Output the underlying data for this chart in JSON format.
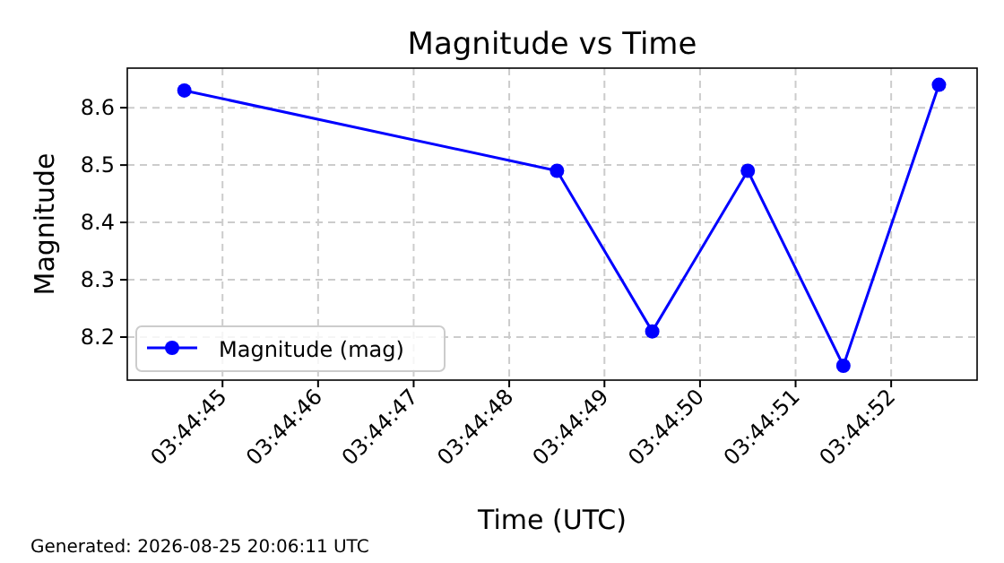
{
  "chart_data": {
    "type": "line",
    "title": "Magnitude vs Time",
    "xlabel": "Time (UTC)",
    "ylabel": "Magnitude",
    "x": [
      3.745722,
      3.746806,
      3.747083,
      3.747361,
      3.747639,
      3.747917
    ],
    "series": [
      {
        "name": "Magnitude (mag)",
        "color": "#0000ff",
        "values": [
          8.63,
          8.49,
          8.21,
          8.49,
          8.15,
          8.64
        ]
      }
    ],
    "xlim": [
      3.745556,
      3.748028
    ],
    "xticks": [
      {
        "value": 3.745833,
        "label": "03:44:45"
      },
      {
        "value": 3.746111,
        "label": "03:44:46"
      },
      {
        "value": 3.746389,
        "label": "03:44:47"
      },
      {
        "value": 3.746667,
        "label": "03:44:48"
      },
      {
        "value": 3.746944,
        "label": "03:44:49"
      },
      {
        "value": 3.747222,
        "label": "03:44:50"
      },
      {
        "value": 3.7475,
        "label": "03:44:51"
      },
      {
        "value": 3.747778,
        "label": "03:44:52"
      }
    ],
    "ylim": [
      8.125,
      8.669
    ],
    "yticks": [
      8.2,
      8.3,
      8.4,
      8.5,
      8.6
    ],
    "grid": true,
    "legend": "bottom left",
    "marker": "circle",
    "line_style": "solid",
    "annotations": [
      "Generated: 2026-08-25 20:06:11 UTC"
    ]
  }
}
